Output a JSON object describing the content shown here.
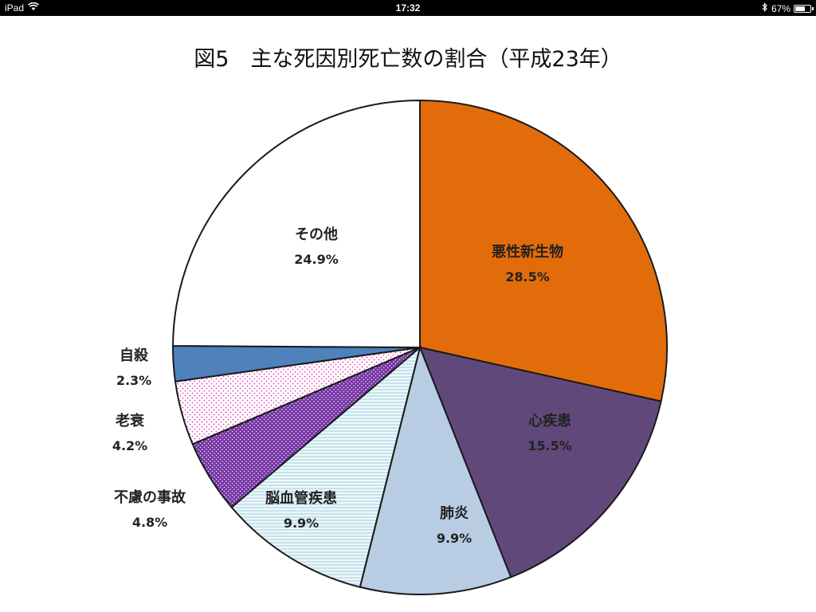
{
  "status_bar": {
    "device": "iPad",
    "time": "17:32",
    "battery": "67%",
    "battery_level": 0.67
  },
  "chart_data": {
    "type": "pie",
    "title": "図5　主な死因別死亡数の割合（平成23年）",
    "slices": [
      {
        "label": "悪性新生物",
        "value": 28.5,
        "display": "28.5%",
        "color": "#e36c0a",
        "pattern": "solid"
      },
      {
        "label": "心疾患",
        "value": 15.5,
        "display": "15.5%",
        "color": "#60497a",
        "pattern": "solid"
      },
      {
        "label": "肺炎",
        "value": 9.9,
        "display": "9.9%",
        "color": "#b8cce4",
        "pattern": "solid"
      },
      {
        "label": "脳血管疾患",
        "value": 9.9,
        "display": "9.9%",
        "color": "#dbeef4",
        "pattern": "horizontal-lines"
      },
      {
        "label": "不慮の事故",
        "value": 4.8,
        "display": "4.8%",
        "color": "#7030a0",
        "pattern": "dots"
      },
      {
        "label": "老衰",
        "value": 4.2,
        "display": "4.2%",
        "color": "#ffffff",
        "pattern": "pink-dots"
      },
      {
        "label": "自殺",
        "value": 2.3,
        "display": "2.3%",
        "color": "#4f81bd",
        "pattern": "solid"
      },
      {
        "label": "その他",
        "value": 24.9,
        "display": "24.9%",
        "color": "#ffffff",
        "pattern": "solid"
      }
    ]
  }
}
